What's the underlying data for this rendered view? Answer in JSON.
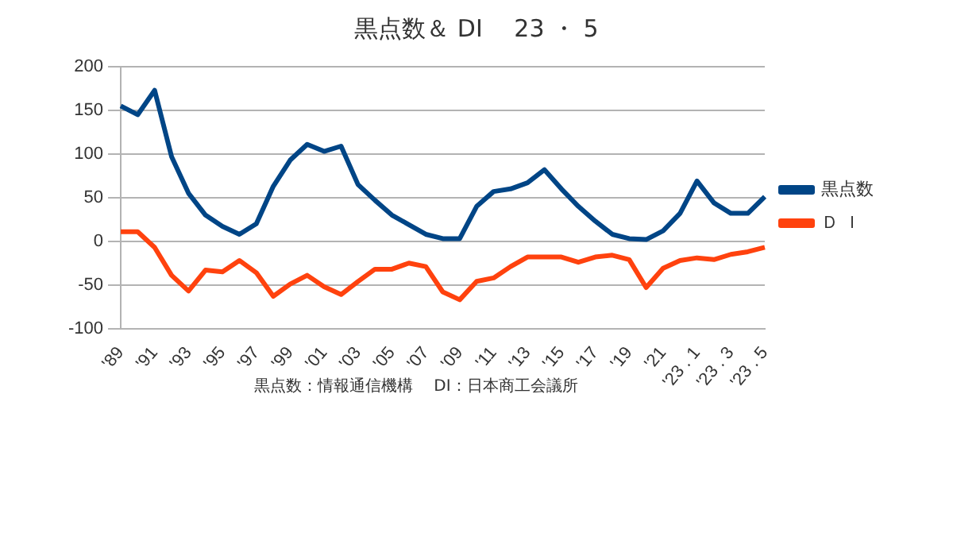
{
  "chart_data": {
    "type": "line",
    "title": "黒点数＆ DI　 23 ・ 5",
    "categories": [
      "'89",
      null,
      "'91",
      null,
      "'93",
      null,
      "'95",
      null,
      "'97",
      null,
      "'99",
      null,
      "'01",
      null,
      "'03",
      null,
      "'05",
      null,
      "'07",
      null,
      "'09",
      null,
      "'11",
      null,
      "'13",
      null,
      "'15",
      null,
      "'17",
      null,
      "'19",
      null,
      "'21",
      null,
      "'23 . 1",
      null,
      "'23 . 3",
      null,
      "'23 . 5"
    ],
    "series": [
      {
        "name": "黒点数",
        "color": "#004586",
        "values": [
          155,
          145,
          173,
          97,
          55,
          30,
          17,
          8,
          20,
          63,
          93,
          111,
          103,
          109,
          65,
          47,
          30,
          19,
          8,
          3,
          3,
          40,
          57,
          60,
          67,
          82,
          60,
          40,
          23,
          8,
          3,
          2,
          12,
          32,
          69,
          44,
          32,
          32,
          51
        ]
      },
      {
        "name": "Ｄ Ｉ",
        "color": "#ff420e",
        "values": [
          11,
          11,
          -7,
          -39,
          -57,
          -33,
          -35,
          -22,
          -36,
          -63,
          -49,
          -39,
          -52,
          -61,
          -46,
          -32,
          -32,
          -25,
          -29,
          -58,
          -67,
          -46,
          -42,
          -29,
          -18,
          -18,
          -18,
          -24,
          -18,
          -16,
          -21,
          -53,
          -31,
          -22,
          -19,
          -21,
          -15,
          -12,
          -7
        ]
      }
    ],
    "ylim": [
      -100,
      200
    ],
    "yticks": [
      -100,
      -50,
      0,
      50,
      100,
      150,
      200
    ],
    "grid": "y",
    "legend": "right",
    "marker": "none",
    "line_style": "solid",
    "annotations": [
      "黒点数：情報通信機構　 DI：日本商工会議所"
    ]
  }
}
